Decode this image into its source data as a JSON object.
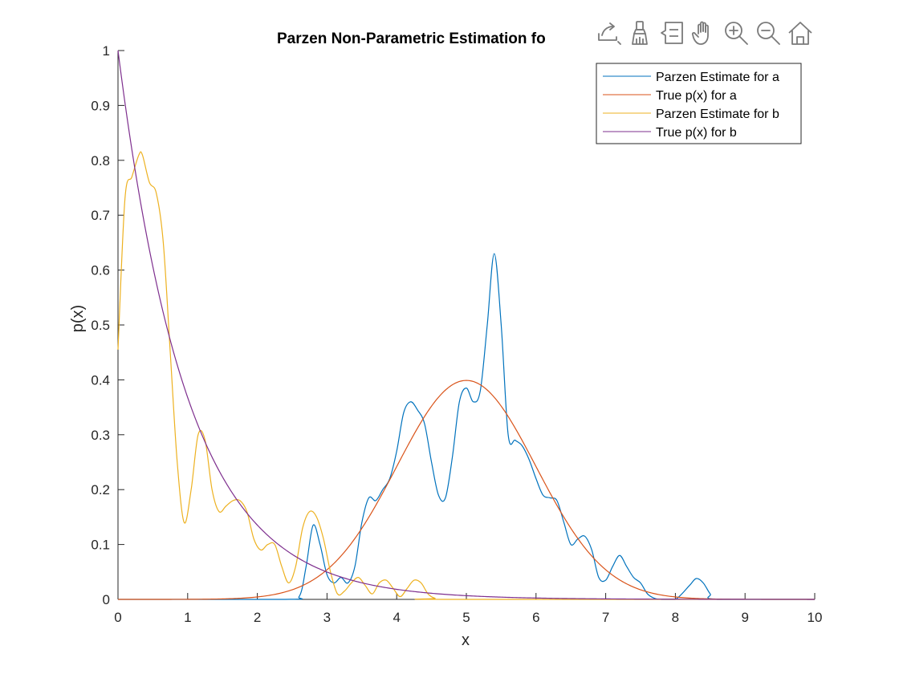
{
  "toolbar": {
    "items": [
      {
        "name": "export-icon",
        "label": "Export"
      },
      {
        "name": "brush-icon",
        "label": "Brush"
      },
      {
        "name": "datatip-icon",
        "label": "Data Tips"
      },
      {
        "name": "pan-hand-icon",
        "label": "Pan"
      },
      {
        "name": "zoom-in-icon",
        "label": "Zoom In"
      },
      {
        "name": "zoom-out-icon",
        "label": "Zoom Out"
      },
      {
        "name": "home-icon",
        "label": "Restore View"
      }
    ]
  },
  "colors": {
    "parzen_a": "#0072BD",
    "true_a": "#D95319",
    "parzen_b": "#EDB120",
    "true_b": "#7E2F8E",
    "axis": "#262626"
  },
  "chart_data": {
    "type": "line",
    "title": "Parzen Non-Parametric Estimation fo",
    "xlabel": "x",
    "ylabel": "p(x)",
    "xlim": [
      0,
      10
    ],
    "ylim": [
      0,
      1
    ],
    "xticks": [
      "0",
      "1",
      "2",
      "3",
      "4",
      "5",
      "6",
      "7",
      "8",
      "9",
      "10"
    ],
    "yticks": [
      "0",
      "0.1",
      "0.2",
      "0.3",
      "0.4",
      "0.5",
      "0.6",
      "0.7",
      "0.8",
      "0.9",
      "1"
    ],
    "grid": false,
    "legend_position": "top-right",
    "series": [
      {
        "name": "Parzen Estimate for a",
        "color": "#0072BD",
        "x": [
          0,
          2.4,
          2.6,
          2.7,
          2.8,
          2.9,
          3.0,
          3.1,
          3.2,
          3.3,
          3.4,
          3.5,
          3.6,
          3.7,
          3.8,
          3.9,
          4.0,
          4.1,
          4.2,
          4.3,
          4.4,
          4.5,
          4.6,
          4.7,
          4.8,
          4.9,
          5.0,
          5.1,
          5.2,
          5.3,
          5.4,
          5.5,
          5.6,
          5.7,
          5.8,
          5.9,
          6.0,
          6.1,
          6.2,
          6.3,
          6.4,
          6.5,
          6.6,
          6.7,
          6.8,
          6.9,
          7.0,
          7.1,
          7.2,
          7.3,
          7.4,
          7.5,
          7.6,
          7.7,
          7.8,
          8.0,
          8.2,
          8.3,
          8.4,
          8.5,
          8.6,
          10.0
        ],
        "y": [
          0,
          0,
          0.005,
          0.06,
          0.135,
          0.1,
          0.045,
          0.03,
          0.04,
          0.03,
          0.06,
          0.14,
          0.185,
          0.18,
          0.2,
          0.22,
          0.27,
          0.34,
          0.36,
          0.345,
          0.32,
          0.25,
          0.19,
          0.185,
          0.26,
          0.36,
          0.385,
          0.36,
          0.38,
          0.5,
          0.63,
          0.5,
          0.3,
          0.29,
          0.28,
          0.255,
          0.22,
          0.19,
          0.185,
          0.18,
          0.14,
          0.1,
          0.11,
          0.115,
          0.09,
          0.04,
          0.035,
          0.06,
          0.08,
          0.06,
          0.04,
          0.03,
          0.01,
          0.002,
          0,
          0,
          0.025,
          0.038,
          0.03,
          0.01,
          0,
          0
        ]
      },
      {
        "name": "True p(x) for a",
        "color": "#D95319",
        "function": "normal",
        "mean": 5,
        "std": 1
      },
      {
        "name": "Parzen Estimate for b",
        "color": "#EDB120",
        "x": [
          0,
          0.1,
          0.2,
          0.3,
          0.35,
          0.45,
          0.55,
          0.65,
          0.75,
          0.85,
          0.95,
          1.05,
          1.15,
          1.25,
          1.35,
          1.45,
          1.55,
          1.65,
          1.75,
          1.85,
          1.95,
          2.05,
          2.15,
          2.25,
          2.35,
          2.45,
          2.55,
          2.65,
          2.75,
          2.85,
          2.95,
          3.05,
          3.15,
          3.25,
          3.35,
          3.45,
          3.55,
          3.65,
          3.75,
          3.85,
          3.95,
          4.05,
          4.15,
          4.25,
          4.35,
          4.45,
          4.55,
          4.7,
          10.0
        ],
        "y": [
          0.455,
          0.73,
          0.77,
          0.81,
          0.81,
          0.76,
          0.74,
          0.65,
          0.45,
          0.25,
          0.14,
          0.2,
          0.3,
          0.29,
          0.2,
          0.16,
          0.17,
          0.18,
          0.18,
          0.16,
          0.11,
          0.09,
          0.1,
          0.1,
          0.06,
          0.03,
          0.06,
          0.13,
          0.16,
          0.15,
          0.11,
          0.05,
          0.01,
          0.015,
          0.03,
          0.04,
          0.025,
          0.01,
          0.03,
          0.035,
          0.02,
          0.005,
          0.02,
          0.035,
          0.03,
          0.01,
          0.002,
          0,
          0
        ]
      },
      {
        "name": "True p(x) for b",
        "color": "#7E2F8E",
        "function": "exponential",
        "rate": 1
      }
    ]
  }
}
